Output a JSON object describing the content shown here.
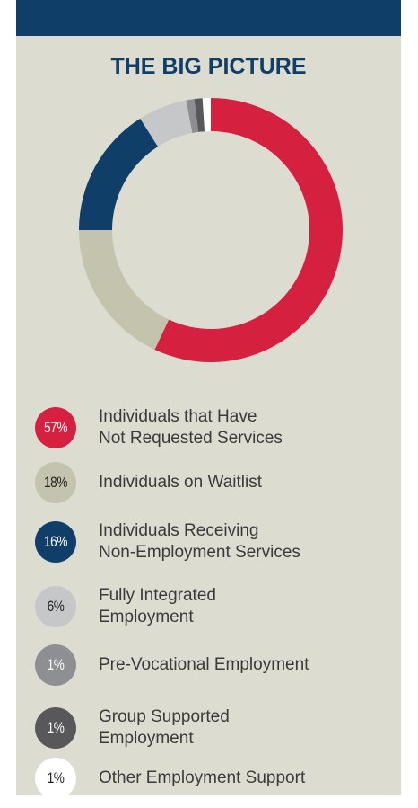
{
  "chart_data": {
    "type": "donut",
    "title": "THE BIG PICTURE",
    "categories": [
      "Individuals that Have\nNot Requested Services",
      "Individuals on Waitlist",
      "Individuals Receiving\nNon-Employment Services",
      "Fully Integrated\nEmployment",
      "Pre-Vocational Employment",
      "Group Supported\nEmployment",
      "Other Employment Support"
    ],
    "values": [
      57,
      18,
      16,
      6,
      1,
      1,
      1
    ],
    "value_labels": [
      "57%",
      "18%",
      "16%",
      "6%",
      "1%",
      "1%",
      "1%"
    ],
    "colors": [
      "#d6203f",
      "#c4c3ad",
      "#0f3e68",
      "#c6c7c9",
      "#8e8f92",
      "#58585b",
      "#ffffff"
    ]
  }
}
